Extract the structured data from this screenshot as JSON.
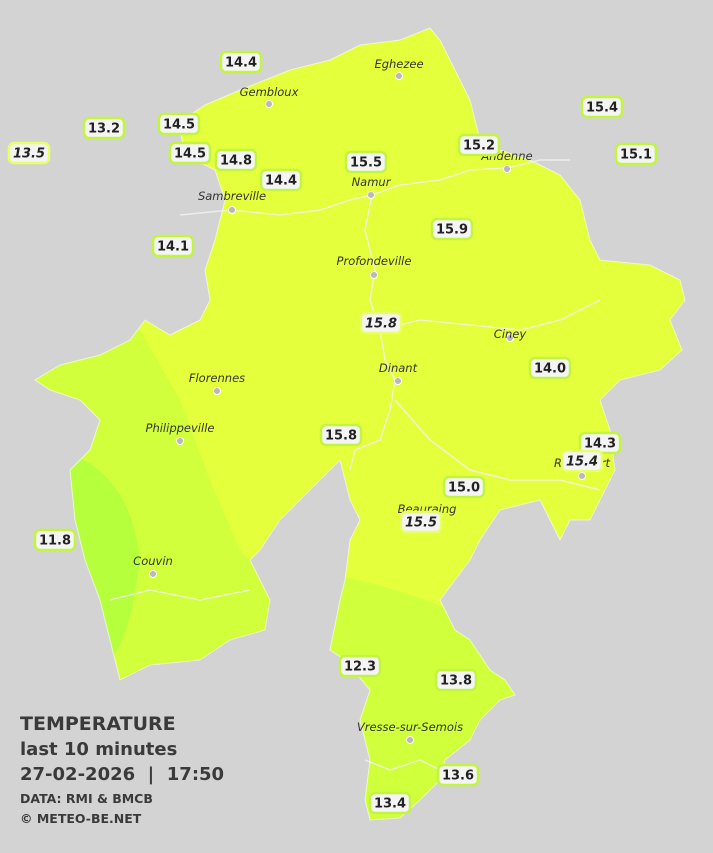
{
  "cities": [
    "Eghezee",
    "Gembloux",
    "Andenne",
    "Namur",
    "Sambreville",
    "Profondeville",
    "Ciney",
    "Dinant",
    "Florennes",
    "Philippeville",
    "Beauraing",
    "Rochefort",
    "Couvin",
    "Vresse-sur-Semois"
  ],
  "stations": [
    "14.4",
    "13.2",
    "13.5",
    "14.5",
    "14.5",
    "14.8",
    "14.4",
    "15.5",
    "15.2",
    "15.4",
    "15.1",
    "14.1",
    "15.9",
    "15.8",
    "14.0",
    "15.8",
    "14.3",
    "15.4",
    "15.0",
    "15.5",
    "11.8",
    "12.3",
    "13.8",
    "13.6",
    "13.4"
  ],
  "legend": {
    "title": "TEMPERATURE",
    "subtitle": "last 10 minutes",
    "timestamp": "27-02-2026  |  17:50",
    "source": "DATA: RMI & BMCB",
    "credit": "© METEO-BE.NET"
  }
}
